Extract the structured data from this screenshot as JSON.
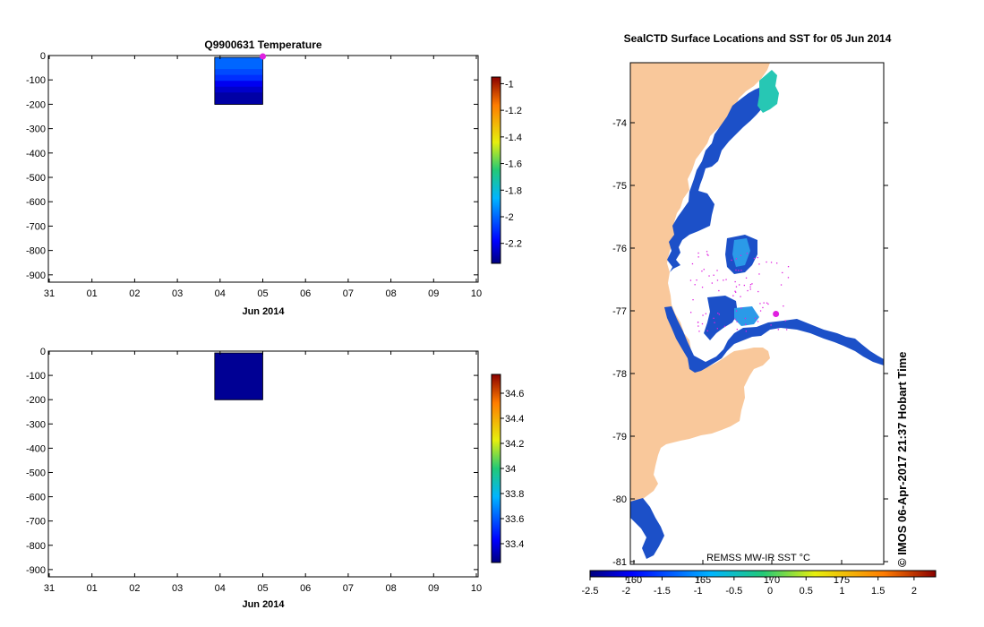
{
  "colors": {
    "land": "#f9c89b",
    "ocean_blue": "#1c50c8",
    "dark_profile": "#000a82",
    "marker": "#e020e0"
  },
  "icons": {
    "map_marker": "magenta-dot-icon"
  },
  "stamp": "© IMOS 06-Apr-2017 21:37 Hobart Time",
  "chart_data": [
    {
      "id": "temperature",
      "type": "heatmap",
      "title": "Q9900631  Temperature",
      "xlabel": "Jun 2014",
      "xticks": [
        "31",
        "01",
        "02",
        "03",
        "04",
        "05",
        "06",
        "07",
        "08",
        "09",
        "10"
      ],
      "yticks": [
        0,
        -100,
        -200,
        -300,
        -400,
        -500,
        -600,
        -700,
        -800,
        -900
      ],
      "ylim": [
        -930,
        0
      ],
      "colorbar": {
        "ticks": [
          -1,
          -1.2,
          -1.4,
          -1.6,
          -1.8,
          -2,
          -2.2
        ],
        "range": [
          -2.35,
          -0.95
        ]
      },
      "profile": {
        "x_start": "04",
        "x_end": "05",
        "depth_range": [
          0,
          -200
        ],
        "values_top_to_bottom": [
          -2.0,
          -2.0,
          -2.05,
          -2.1,
          -2.2,
          -2.25,
          -2.3,
          -2.3
        ]
      },
      "marker": {
        "x": "05",
        "y": 0
      }
    },
    {
      "id": "salinity",
      "type": "heatmap",
      "title": "",
      "xlabel": "Jun 2014",
      "xticks": [
        "31",
        "01",
        "02",
        "03",
        "04",
        "05",
        "06",
        "07",
        "08",
        "09",
        "10"
      ],
      "yticks": [
        0,
        -100,
        -200,
        -300,
        -400,
        -500,
        -600,
        -700,
        -800,
        -900
      ],
      "ylim": [
        -930,
        0
      ],
      "colorbar": {
        "ticks": [
          34.6,
          34.4,
          34.2,
          34,
          33.8,
          33.6,
          33.4
        ],
        "range": [
          33.25,
          34.75
        ]
      },
      "profile": {
        "x_start": "04",
        "x_end": "05",
        "depth_range": [
          0,
          -200
        ],
        "values_top_to_bottom": [
          33.28
        ]
      }
    },
    {
      "id": "sst_map",
      "type": "heatmap",
      "title": "SealCTD Surface Locations and SST for 05 Jun 2014",
      "yticks": [
        "-74",
        "-75",
        "-76",
        "-77",
        "-78",
        "-79",
        "-80",
        "-81"
      ],
      "xticks": [
        "160",
        "165",
        "170",
        "175"
      ],
      "colorbar": {
        "label": "REMSS MW-IR SST °C",
        "ticks": [
          "-2.5",
          "-2",
          "-1.5",
          "-1",
          "-0.5",
          "0",
          "0.5",
          "1",
          "1.5",
          "2"
        ],
        "range": [
          -2.5,
          2.3
        ]
      },
      "latest_location": {
        "lon": 170.3,
        "lat": -77.05
      }
    }
  ]
}
